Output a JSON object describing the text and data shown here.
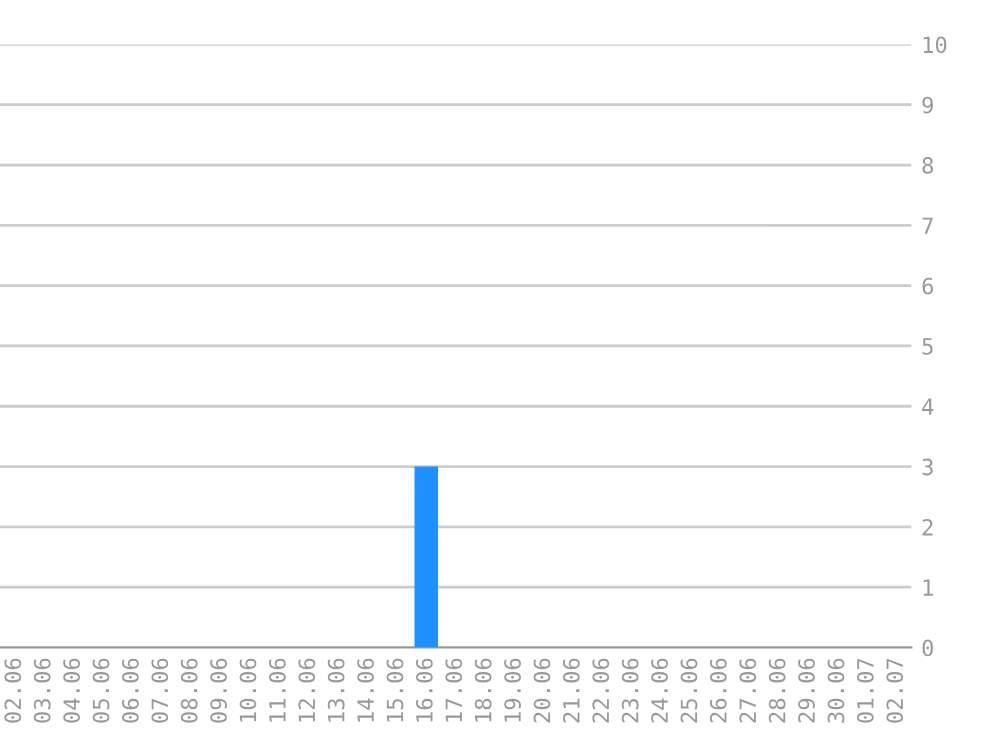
{
  "chart_data": {
    "type": "bar",
    "categories": [
      "02.06",
      "03.06",
      "04.06",
      "05.06",
      "06.06",
      "07.06",
      "08.06",
      "09.06",
      "10.06",
      "11.06",
      "12.06",
      "13.06",
      "14.06",
      "15.06",
      "16.06",
      "17.06",
      "18.06",
      "19.06",
      "20.06",
      "21.06",
      "22.06",
      "23.06",
      "24.06",
      "25.06",
      "26.06",
      "27.06",
      "28.06",
      "29.06",
      "30.06",
      "01.07",
      "02.07"
    ],
    "values": [
      0,
      0,
      0,
      0,
      0,
      0,
      0,
      0,
      0,
      0,
      0,
      0,
      0,
      0,
      3,
      0,
      0,
      0,
      0,
      0,
      0,
      0,
      0,
      0,
      0,
      0,
      0,
      0,
      0,
      0,
      0
    ],
    "color": "#1e90ff",
    "ylim": [
      0,
      10
    ],
    "yticks": [
      0,
      1,
      2,
      3,
      4,
      5,
      6,
      7,
      8,
      9,
      10
    ],
    "grid": "y",
    "legend": false
  }
}
